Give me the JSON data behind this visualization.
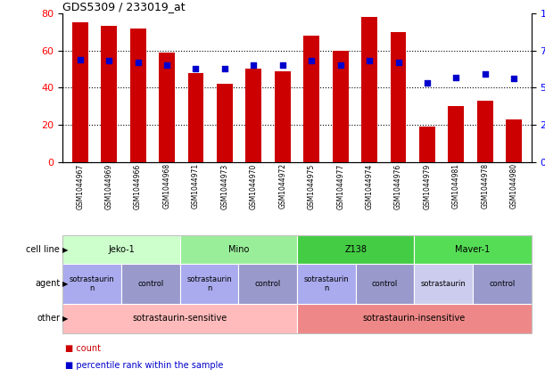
{
  "title": "GDS5309 / 233019_at",
  "samples": [
    "GSM1044967",
    "GSM1044969",
    "GSM1044966",
    "GSM1044968",
    "GSM1044971",
    "GSM1044973",
    "GSM1044970",
    "GSM1044972",
    "GSM1044975",
    "GSM1044977",
    "GSM1044974",
    "GSM1044976",
    "GSM1044979",
    "GSM1044981",
    "GSM1044978",
    "GSM1044980"
  ],
  "counts": [
    75,
    73,
    72,
    59,
    48,
    42,
    50,
    49,
    68,
    60,
    78,
    70,
    19,
    30,
    33,
    23
  ],
  "percentiles": [
    69,
    68,
    67,
    65,
    63,
    63,
    65,
    65,
    68,
    65,
    68,
    67,
    53,
    57,
    59,
    56
  ],
  "bar_color": "#cc0000",
  "dot_color": "#0000cc",
  "cell_line_groups": [
    {
      "label": "Jeko-1",
      "start": 0,
      "end": 4,
      "color": "#ccffcc"
    },
    {
      "label": "Mino",
      "start": 4,
      "end": 8,
      "color": "#99ee99"
    },
    {
      "label": "Z138",
      "start": 8,
      "end": 12,
      "color": "#44cc44"
    },
    {
      "label": "Maver-1",
      "start": 12,
      "end": 16,
      "color": "#55dd55"
    }
  ],
  "agent_groups": [
    {
      "label": "sotrastaurin\nn",
      "start": 0,
      "end": 2,
      "color": "#aaaaee"
    },
    {
      "label": "control",
      "start": 2,
      "end": 4,
      "color": "#9999cc"
    },
    {
      "label": "sotrastaurin\nn",
      "start": 4,
      "end": 6,
      "color": "#aaaaee"
    },
    {
      "label": "control",
      "start": 6,
      "end": 8,
      "color": "#9999cc"
    },
    {
      "label": "sotrastaurin\nn",
      "start": 8,
      "end": 10,
      "color": "#aaaaee"
    },
    {
      "label": "control",
      "start": 10,
      "end": 12,
      "color": "#9999cc"
    },
    {
      "label": "sotrastaurin",
      "start": 12,
      "end": 14,
      "color": "#ccccee"
    },
    {
      "label": "control",
      "start": 14,
      "end": 16,
      "color": "#9999cc"
    }
  ],
  "other_groups": [
    {
      "label": "sotrastaurin-sensitive",
      "start": 0,
      "end": 8,
      "color": "#ffbbbb"
    },
    {
      "label": "sotrastaurin-insensitive",
      "start": 8,
      "end": 16,
      "color": "#ee8888"
    }
  ],
  "row_labels": [
    "cell line",
    "agent",
    "other"
  ],
  "legend_count_color": "#cc0000",
  "legend_pct_color": "#0000cc"
}
